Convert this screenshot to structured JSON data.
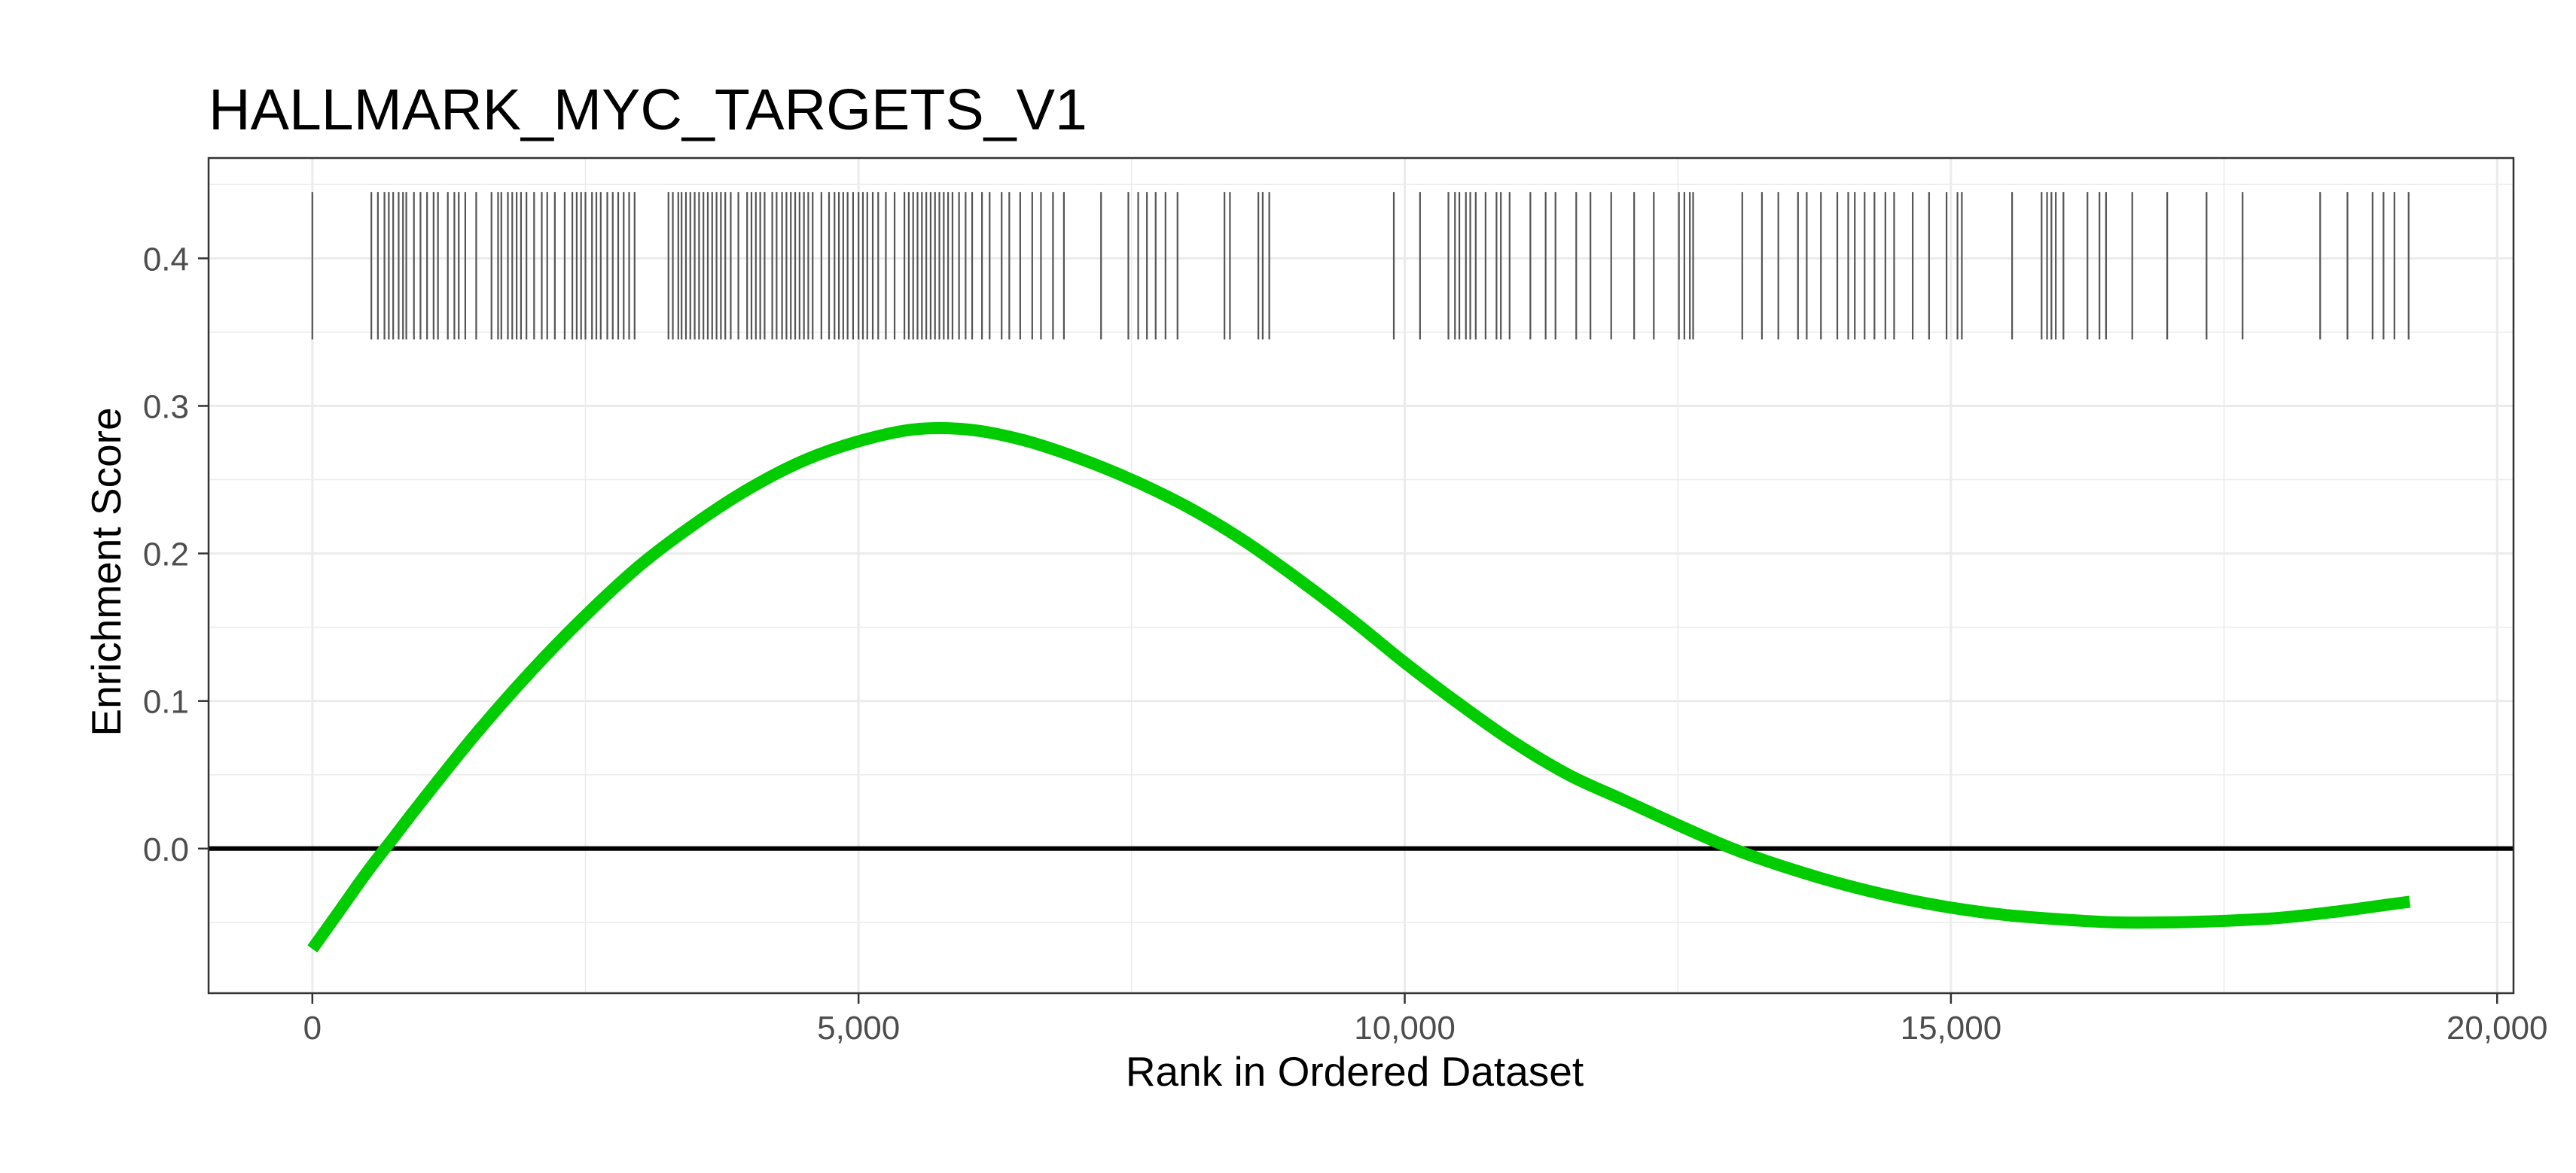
{
  "chart_data": {
    "type": "line",
    "title": "HALLMARK_MYC_TARGETS_V1",
    "xlabel": "Rank in Ordered Dataset",
    "ylabel": "Enrichment Score",
    "xlim": [
      -950,
      20150
    ],
    "ylim": [
      -0.098,
      0.468
    ],
    "x_ticks": [
      0,
      5000,
      10000,
      15000,
      20000
    ],
    "x_tick_labels": [
      "0",
      "5,000",
      "10,000",
      "15,000",
      "20,000"
    ],
    "y_ticks": [
      0.0,
      0.1,
      0.2,
      0.3,
      0.4
    ],
    "y_tick_labels": [
      "0.0",
      "0.1",
      "0.2",
      "0.3",
      "0.4"
    ],
    "grid": true,
    "legend": "none",
    "zero_line": 0,
    "series": [
      {
        "color": "#00cc00",
        "x": [
          0,
          250,
          500,
          750,
          1000,
          1500,
          2000,
          2500,
          3000,
          3500,
          4000,
          4500,
          5000,
          5500,
          6000,
          6500,
          7000,
          7500,
          8000,
          8500,
          9000,
          9500,
          10000,
          10500,
          11000,
          11500,
          12000,
          12500,
          13000,
          13500,
          14000,
          14500,
          15000,
          15500,
          16000,
          16500,
          17000,
          17500,
          18000,
          18500,
          19000,
          19200
        ],
        "y": [
          -0.068,
          -0.042,
          -0.016,
          0.008,
          0.032,
          0.078,
          0.12,
          0.158,
          0.192,
          0.22,
          0.244,
          0.263,
          0.276,
          0.284,
          0.284,
          0.277,
          0.265,
          0.25,
          0.232,
          0.21,
          0.184,
          0.156,
          0.126,
          0.098,
          0.072,
          0.05,
          0.033,
          0.016,
          0.0,
          -0.013,
          -0.024,
          -0.033,
          -0.04,
          -0.045,
          -0.048,
          -0.05,
          -0.05,
          -0.049,
          -0.047,
          -0.043,
          -0.038,
          -0.036
        ]
      }
    ],
    "gene_hits": {
      "y_range": [
        0.345,
        0.445
      ],
      "color": "#555555",
      "ranks": [
        0,
        540,
        600,
        660,
        700,
        740,
        790,
        830,
        860,
        930,
        990,
        1050,
        1110,
        1150,
        1240,
        1300,
        1340,
        1400,
        1500,
        1640,
        1700,
        1730,
        1790,
        1830,
        1870,
        1910,
        1960,
        2030,
        2100,
        2150,
        2220,
        2310,
        2380,
        2420,
        2460,
        2500,
        2560,
        2600,
        2640,
        2700,
        2750,
        2800,
        2850,
        2900,
        2950,
        3260,
        3300,
        3350,
        3380,
        3420,
        3460,
        3500,
        3540,
        3580,
        3620,
        3660,
        3700,
        3740,
        3780,
        3830,
        3900,
        3980,
        4020,
        4060,
        4100,
        4140,
        4210,
        4250,
        4300,
        4340,
        4380,
        4420,
        4460,
        4500,
        4540,
        4580,
        4660,
        4730,
        4780,
        4820,
        4860,
        4900,
        4950,
        5000,
        5040,
        5080,
        5130,
        5180,
        5250,
        5330,
        5420,
        5460,
        5500,
        5540,
        5580,
        5620,
        5660,
        5700,
        5740,
        5780,
        5820,
        5860,
        5920,
        5980,
        6040,
        6130,
        6200,
        6310,
        6380,
        6480,
        6590,
        6670,
        6780,
        6880,
        7220,
        7470,
        7560,
        7640,
        7720,
        7810,
        7920,
        8350,
        8400,
        8660,
        8700,
        8760,
        9900,
        10140,
        10400,
        10460,
        10500,
        10560,
        10600,
        10650,
        10740,
        10840,
        10880,
        10960,
        11150,
        11290,
        11380,
        11570,
        11700,
        11890,
        12100,
        12280,
        12510,
        12560,
        12610,
        12640,
        13090,
        13270,
        13420,
        13600,
        13680,
        13810,
        13960,
        14060,
        14120,
        14210,
        14300,
        14400,
        14480,
        14650,
        14800,
        14960,
        15060,
        15100,
        15560,
        15830,
        15880,
        15920,
        15960,
        16030,
        16250,
        16360,
        16420,
        16660,
        16980,
        17340,
        17670,
        18380,
        18630,
        18860,
        18960,
        19060,
        19190
      ]
    }
  }
}
